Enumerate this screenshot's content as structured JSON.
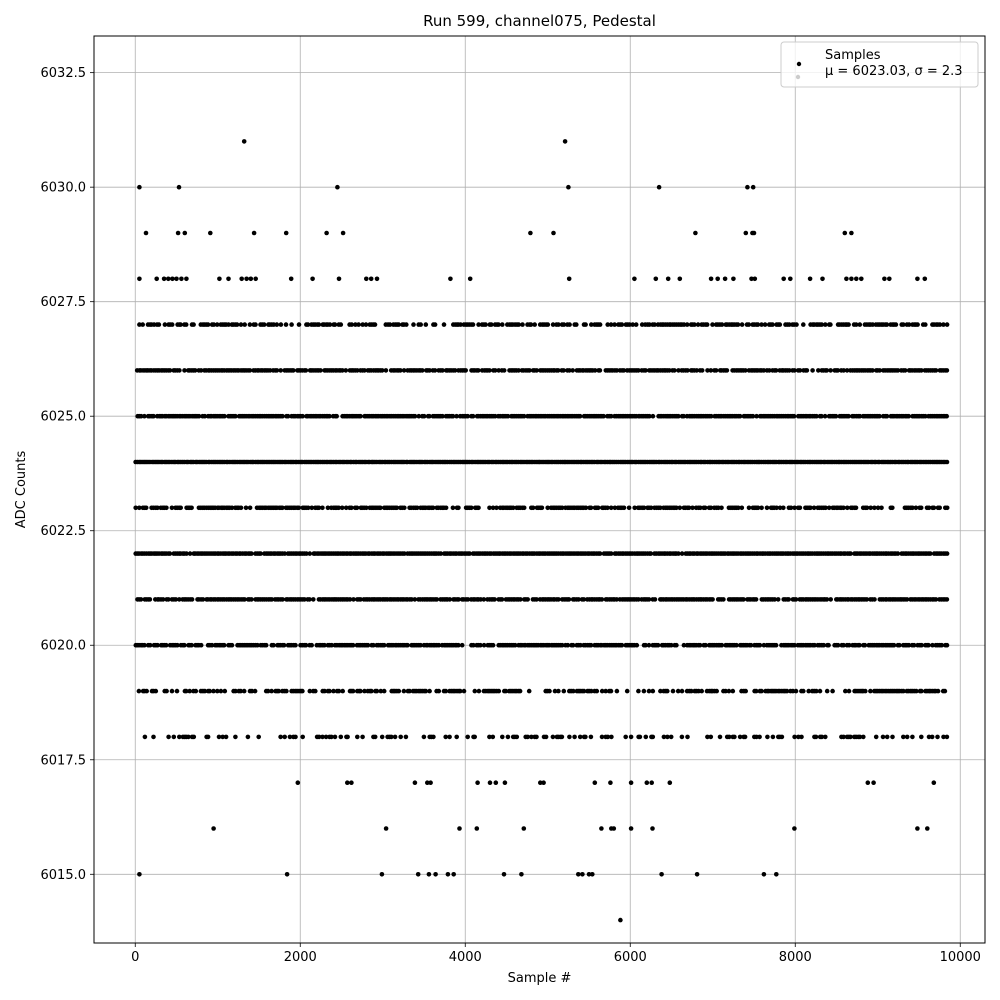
{
  "chart_data": {
    "type": "scatter",
    "title": "Run 599, channel075, Pedestal",
    "xlabel": "Sample #",
    "ylabel": "ADC Counts",
    "xlim": [
      -500,
      10300
    ],
    "ylim": [
      6013.5,
      6033.3
    ],
    "xticks": [
      0,
      2000,
      4000,
      6000,
      8000,
      10000
    ],
    "yticks": [
      6015.0,
      6017.5,
      6020.0,
      6022.5,
      6025.0,
      6027.5,
      6030.0,
      6032.5
    ],
    "xtick_labels": [
      "0",
      "2000",
      "4000",
      "6000",
      "8000",
      "10000"
    ],
    "ytick_labels": [
      "6015.0",
      "6017.5",
      "6020.0",
      "6022.5",
      "6025.0",
      "6027.5",
      "6030.0",
      "6032.5"
    ],
    "grid": true,
    "legend": {
      "placement": "top-right",
      "entries": [
        "Samples",
        "$\\mu$ = 6023.03, $\\sigma$ = 2.3"
      ],
      "display": [
        "Samples",
        "μ = 6023.03, σ = 2.3"
      ]
    },
    "marker_color": "#000000",
    "series": [
      {
        "name": "Samples",
        "dense_levels": [
          6018,
          6019,
          6020,
          6021,
          6022,
          6023,
          6024,
          6025,
          6026,
          6027
        ],
        "dense_x_range": [
          0,
          9840
        ],
        "outliers": [
          [
            1320,
            6031
          ],
          [
            5210,
            6031
          ],
          [
            50,
            6030
          ],
          [
            530,
            6030
          ],
          [
            2450,
            6030
          ],
          [
            5250,
            6030
          ],
          [
            6350,
            6030
          ],
          [
            7420,
            6030
          ],
          [
            7490,
            6030
          ],
          [
            130,
            6029
          ],
          [
            520,
            6029
          ],
          [
            600,
            6029
          ],
          [
            910,
            6029
          ],
          [
            1440,
            6029
          ],
          [
            1830,
            6029
          ],
          [
            2320,
            6029
          ],
          [
            2520,
            6029
          ],
          [
            4790,
            6029
          ],
          [
            5070,
            6029
          ],
          [
            6790,
            6029
          ],
          [
            7400,
            6029
          ],
          [
            7480,
            6029
          ],
          [
            7500,
            6029
          ],
          [
            8600,
            6029
          ],
          [
            8680,
            6029
          ],
          [
            50,
            6028
          ],
          [
            260,
            6028
          ],
          [
            350,
            6028
          ],
          [
            400,
            6028
          ],
          [
            450,
            6028
          ],
          [
            500,
            6028
          ],
          [
            560,
            6028
          ],
          [
            620,
            6028
          ],
          [
            1020,
            6028
          ],
          [
            1130,
            6028
          ],
          [
            1290,
            6028
          ],
          [
            1350,
            6028
          ],
          [
            1400,
            6028
          ],
          [
            1460,
            6028
          ],
          [
            1890,
            6028
          ],
          [
            2150,
            6028
          ],
          [
            2470,
            6028
          ],
          [
            2800,
            6028
          ],
          [
            2860,
            6028
          ],
          [
            2930,
            6028
          ],
          [
            3820,
            6028
          ],
          [
            4060,
            6028
          ],
          [
            5260,
            6028
          ],
          [
            6050,
            6028
          ],
          [
            6310,
            6028
          ],
          [
            6460,
            6028
          ],
          [
            6600,
            6028
          ],
          [
            6980,
            6028
          ],
          [
            7060,
            6028
          ],
          [
            7150,
            6028
          ],
          [
            7250,
            6028
          ],
          [
            7470,
            6028
          ],
          [
            7510,
            6028
          ],
          [
            7860,
            6028
          ],
          [
            7940,
            6028
          ],
          [
            8180,
            6028
          ],
          [
            8330,
            6028
          ],
          [
            8620,
            6028
          ],
          [
            8680,
            6028
          ],
          [
            8740,
            6028
          ],
          [
            8800,
            6028
          ],
          [
            9080,
            6028
          ],
          [
            9140,
            6028
          ],
          [
            9480,
            6028
          ],
          [
            9570,
            6028
          ],
          [
            1970,
            6017
          ],
          [
            2570,
            6017
          ],
          [
            2620,
            6017
          ],
          [
            3390,
            6017
          ],
          [
            3540,
            6017
          ],
          [
            3580,
            6017
          ],
          [
            4150,
            6017
          ],
          [
            4300,
            6017
          ],
          [
            4370,
            6017
          ],
          [
            4480,
            6017
          ],
          [
            4910,
            6017
          ],
          [
            4950,
            6017
          ],
          [
            5570,
            6017
          ],
          [
            5760,
            6017
          ],
          [
            6010,
            6017
          ],
          [
            6200,
            6017
          ],
          [
            6260,
            6017
          ],
          [
            6480,
            6017
          ],
          [
            8880,
            6017
          ],
          [
            8950,
            6017
          ],
          [
            9680,
            6017
          ],
          [
            950,
            6016
          ],
          [
            3040,
            6016
          ],
          [
            3930,
            6016
          ],
          [
            4140,
            6016
          ],
          [
            4710,
            6016
          ],
          [
            5650,
            6016
          ],
          [
            5770,
            6016
          ],
          [
            5800,
            6016
          ],
          [
            6010,
            6016
          ],
          [
            6270,
            6016
          ],
          [
            7990,
            6016
          ],
          [
            9480,
            6016
          ],
          [
            9600,
            6016
          ],
          [
            50,
            6015
          ],
          [
            1840,
            6015
          ],
          [
            2990,
            6015
          ],
          [
            3430,
            6015
          ],
          [
            3560,
            6015
          ],
          [
            3640,
            6015
          ],
          [
            3790,
            6015
          ],
          [
            3860,
            6015
          ],
          [
            4470,
            6015
          ],
          [
            4680,
            6015
          ],
          [
            5370,
            6015
          ],
          [
            5420,
            6015
          ],
          [
            5500,
            6015
          ],
          [
            5540,
            6015
          ],
          [
            6380,
            6015
          ],
          [
            6810,
            6015
          ],
          [
            7620,
            6015
          ],
          [
            7770,
            6015
          ],
          [
            5880,
            6014
          ]
        ]
      }
    ]
  }
}
